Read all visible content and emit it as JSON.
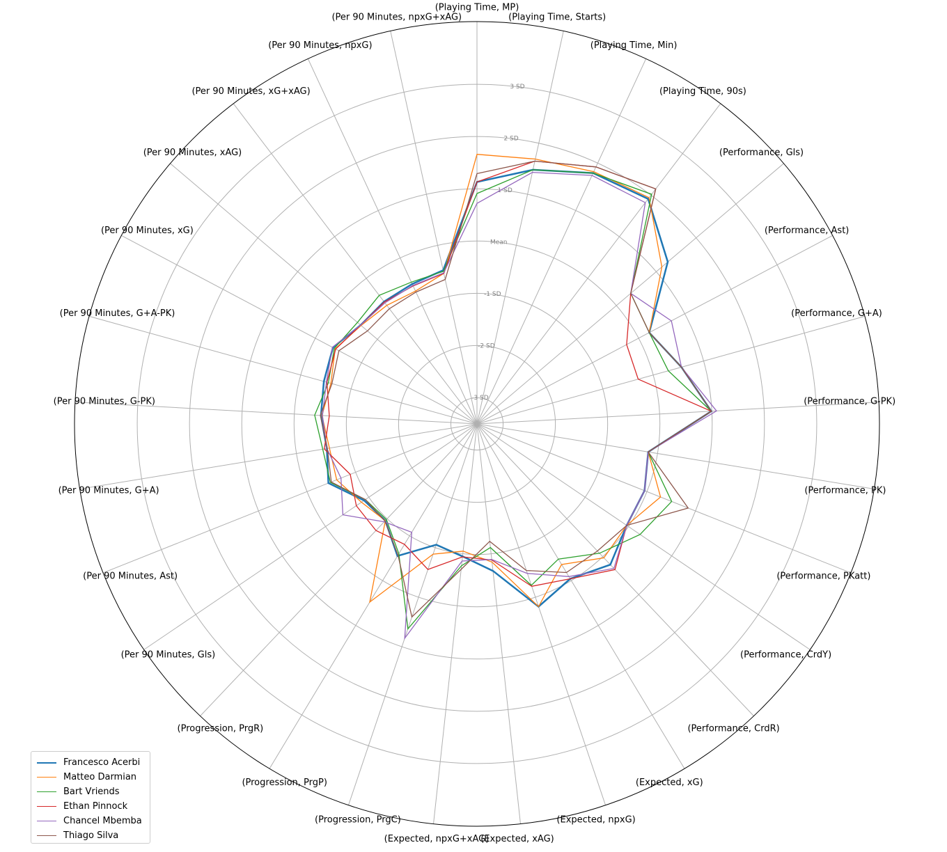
{
  "chart_data": {
    "type": "radar",
    "axes": [
      "(Playing Time, MP)",
      "(Playing Time, Starts)",
      "(Playing Time, Min)",
      "(Playing Time, 90s)",
      "(Performance, Gls)",
      "(Performance, Ast)",
      "(Performance, G+A)",
      "(Performance, G-PK)",
      "(Performance, PK)",
      "(Performance, PKatt)",
      "(Performance, CrdY)",
      "(Performance, CrdR)",
      "(Expected, xG)",
      "(Expected, npxG)",
      "(Expected, xAG)",
      "(Expected, npxG+xAG)",
      "(Progression, PrgC)",
      "(Progression, PrgP)",
      "(Progression, PrgR)",
      "(Per 90 Minutes, Gls)",
      "(Per 90 Minutes, Ast)",
      "(Per 90 Minutes, G+A)",
      "(Per 90 Minutes, G-PK)",
      "(Per 90 Minutes, G+A-PK)",
      "(Per 90 Minutes, xG)",
      "(Per 90 Minutes, xAG)",
      "(Per 90 Minutes, xG+xAG)",
      "(Per 90 Minutes, npxG)",
      "(Per 90 Minutes, npxG+xAG)"
    ],
    "rings": [
      {
        "value": -3,
        "label": "-3 SD"
      },
      {
        "value": -2,
        "label": "-2 SD"
      },
      {
        "value": -1,
        "label": "-1 SD"
      },
      {
        "value": 0,
        "label": "Mean"
      },
      {
        "value": 1,
        "label": "1 SD"
      },
      {
        "value": 2,
        "label": "2 SD"
      },
      {
        "value": 3,
        "label": "3 SD"
      }
    ],
    "rlim": [
      -3.5,
      4.2
    ],
    "legend_position": "bottom-left",
    "series": [
      {
        "name": "Francesco Acerbi",
        "color": "#1f77b4",
        "width": 2.5,
        "values": [
          1.13,
          1.48,
          1.79,
          1.91,
          1.29,
          0.23,
          0.56,
          0.99,
          -0.18,
          -0.05,
          -0.04,
          0.21,
          -0.04,
          0.19,
          -0.67,
          -0.95,
          -1.06,
          -0.55,
          -0.95,
          -0.89,
          -0.44,
          -0.59,
          -0.51,
          -0.46,
          -0.38,
          -0.58,
          -0.56,
          -0.55,
          -0.49
        ]
      },
      {
        "name": "Matteo Darmian",
        "color": "#ff7f0e",
        "width": 1.3,
        "values": [
          1.66,
          1.69,
          1.82,
          1.94,
          1.14,
          0.23,
          0.56,
          0.99,
          -0.18,
          0.28,
          -0.04,
          0.03,
          -0.36,
          0.19,
          -0.84,
          -1.05,
          -0.87,
          0.48,
          -0.95,
          -0.83,
          -0.61,
          -0.64,
          -0.53,
          -0.6,
          -0.43,
          -0.59,
          -0.65,
          -0.7,
          -0.55
        ]
      },
      {
        "name": "Bart Vriends",
        "color": "#2ca02c",
        "width": 1.3,
        "values": [
          0.91,
          1.48,
          1.79,
          2.02,
          0.36,
          0.23,
          0.3,
          0.99,
          -0.18,
          0.51,
          0.27,
          -0.09,
          -0.48,
          -0.24,
          -1.12,
          -0.77,
          0.64,
          -0.6,
          -0.98,
          -0.92,
          -0.48,
          -0.51,
          -0.39,
          -0.55,
          -0.41,
          -0.5,
          -0.41,
          -0.51,
          -0.51
        ]
      },
      {
        "name": "Ethan Pinnock",
        "color": "#d62728",
        "width": 1.3,
        "values": [
          1.13,
          1.65,
          1.92,
          2.15,
          0.36,
          -0.26,
          -0.3,
          0.99,
          -0.18,
          -0.05,
          -0.04,
          0.34,
          -0.04,
          -0.22,
          -0.88,
          -0.94,
          -0.56,
          -0.81,
          -0.69,
          -0.71,
          -0.89,
          -0.54,
          -0.67,
          -0.52,
          -0.44,
          -0.58,
          -0.57,
          -0.59,
          -0.55
        ]
      },
      {
        "name": "Chancel Mbemba",
        "color": "#9467bd",
        "width": 1.3,
        "values": [
          0.72,
          1.43,
          1.74,
          1.82,
          0.36,
          0.71,
          0.56,
          1.09,
          -0.18,
          -0.05,
          -0.04,
          0.31,
          -0.09,
          -0.48,
          -0.89,
          -0.86,
          0.83,
          -1.08,
          -0.92,
          -0.4,
          -0.7,
          -0.59,
          -0.54,
          -0.51,
          -0.37,
          -0.58,
          -0.59,
          -0.58,
          -0.54
        ]
      },
      {
        "name": "Thiago Silva",
        "color": "#8c564b",
        "width": 1.3,
        "values": [
          1.29,
          1.65,
          1.92,
          2.15,
          0.36,
          0.23,
          0.56,
          0.99,
          -0.18,
          0.85,
          -0.04,
          -0.15,
          -0.18,
          -0.54,
          -1.24,
          -0.7,
          0.4,
          -0.57,
          -0.94,
          -0.92,
          -0.5,
          -0.6,
          -0.5,
          -0.62,
          -0.51,
          -0.75,
          -0.73,
          -0.72,
          -0.67
        ]
      }
    ]
  }
}
